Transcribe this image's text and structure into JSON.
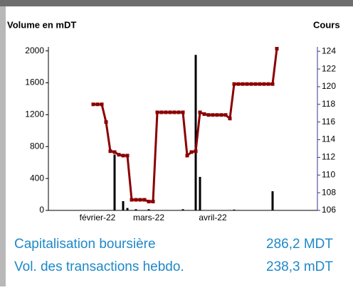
{
  "chart_data": {
    "type": "combo",
    "y_label": "Volume en mDT",
    "y2_label": "Cours",
    "categories": [
      null,
      null,
      null,
      null,
      null,
      null,
      null,
      null,
      null,
      null,
      "février-22",
      null,
      null,
      null,
      null,
      null,
      null,
      null,
      null,
      null,
      null,
      null,
      "mars-22",
      null,
      null,
      null,
      null,
      null,
      null,
      null,
      null,
      null,
      null,
      null,
      null,
      null,
      null,
      "avril-22",
      null,
      null,
      null,
      null,
      null,
      null,
      null,
      null,
      null,
      null,
      null,
      null,
      null,
      null,
      null,
      null,
      null,
      null,
      null,
      null,
      null,
      null,
      null
    ],
    "ylim": [
      0,
      2050
    ],
    "yticks": [
      0,
      400,
      800,
      1200,
      1600,
      2000
    ],
    "y2lim": [
      106,
      124.5
    ],
    "y2ticks": [
      106,
      108,
      110,
      112,
      114,
      116,
      118,
      120,
      122,
      124
    ],
    "series": [
      {
        "type": "bar",
        "color": "#000000",
        "values": [
          null,
          null,
          null,
          null,
          null,
          null,
          null,
          null,
          null,
          null,
          null,
          null,
          null,
          null,
          700,
          null,
          116,
          30,
          null,
          15,
          null,
          null,
          15,
          null,
          null,
          null,
          null,
          null,
          null,
          null,
          15,
          null,
          null,
          1950,
          420,
          null,
          null,
          null,
          null,
          null,
          null,
          null,
          10,
          null,
          null,
          null,
          null,
          null,
          null,
          null,
          null,
          240,
          null,
          null,
          null,
          null,
          null,
          null,
          null,
          null,
          null
        ]
      },
      {
        "type": "line",
        "axis": "y2",
        "color": "#8b0000",
        "values": [
          null,
          null,
          null,
          null,
          null,
          null,
          null,
          null,
          null,
          118,
          118,
          118,
          116,
          112.7,
          112.6,
          112.3,
          112.2,
          112.2,
          107.2,
          107.2,
          107.2,
          107.2,
          107,
          107,
          117.1,
          117.1,
          117.1,
          117.1,
          117.1,
          117.1,
          117.1,
          112.2,
          112.6,
          112.7,
          117.1,
          116.9,
          116.8,
          116.8,
          116.8,
          116.8,
          116.8,
          116.4,
          120.3,
          120.3,
          120.3,
          120.3,
          120.3,
          120.3,
          120.3,
          120.3,
          120.3,
          120.3,
          124.3,
          null,
          null,
          null,
          null,
          null,
          null,
          null,
          null
        ]
      }
    ]
  },
  "info": {
    "rows": [
      [
        "Capitalisation boursière",
        "286,2 MDT"
      ],
      [
        "Vol. des transactions hebdo.",
        "238,3 mDT"
      ]
    ]
  }
}
